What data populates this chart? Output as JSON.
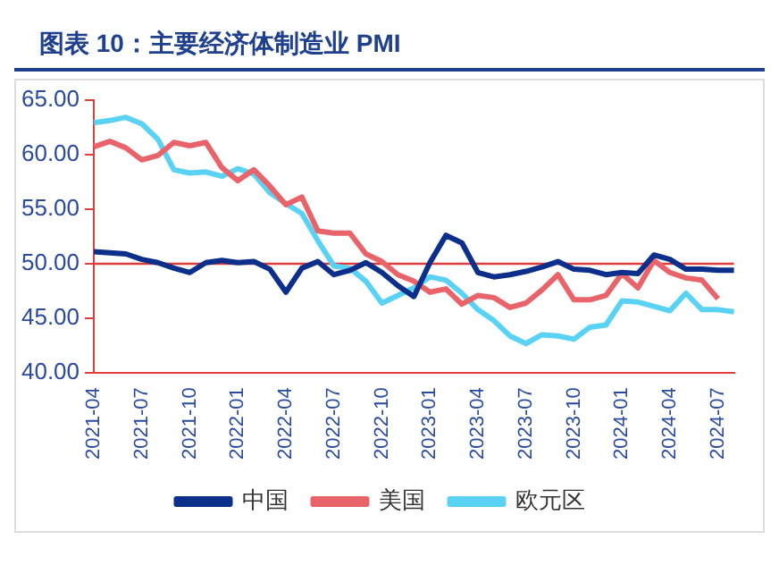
{
  "chart_data": {
    "type": "line",
    "title": "图表 10：主要经济体制造业 PMI",
    "categories": [
      "2021-04",
      null,
      null,
      "2021-07",
      null,
      null,
      "2021-10",
      null,
      null,
      "2022-01",
      null,
      null,
      "2022-04",
      null,
      null,
      "2022-07",
      null,
      null,
      "2022-10",
      null,
      null,
      "2023-01",
      null,
      null,
      "2023-04",
      null,
      null,
      "2023-07",
      null,
      null,
      "2023-10",
      null,
      null,
      "2024-01",
      null,
      null,
      "2024-04",
      null,
      null,
      "2024-07",
      null
    ],
    "series": [
      {
        "name": "中国",
        "color": "#0d2f8c",
        "values": [
          51.1,
          51.0,
          50.9,
          50.4,
          50.1,
          49.6,
          49.2,
          50.1,
          50.3,
          50.1,
          50.2,
          49.5,
          47.4,
          49.6,
          50.2,
          49.0,
          49.4,
          50.1,
          49.2,
          48.0,
          47.0,
          50.1,
          52.6,
          51.9,
          49.2,
          48.8,
          49.0,
          49.3,
          49.7,
          50.2,
          49.5,
          49.4,
          49.0,
          49.2,
          49.1,
          50.8,
          50.4,
          49.5,
          49.5,
          49.4,
          49.4
        ]
      },
      {
        "name": "美国",
        "color": "#e8646a",
        "values": [
          60.7,
          61.2,
          60.6,
          59.5,
          59.9,
          61.1,
          60.8,
          61.1,
          58.8,
          57.6,
          58.6,
          57.1,
          55.4,
          56.1,
          53.0,
          52.8,
          52.8,
          50.9,
          50.2,
          49.0,
          48.4,
          47.4,
          47.7,
          46.3,
          47.1,
          46.9,
          46.0,
          46.4,
          47.6,
          49.0,
          46.7,
          46.7,
          47.1,
          49.1,
          47.8,
          50.3,
          49.2,
          48.7,
          48.5,
          46.8,
          null
        ]
      },
      {
        "name": "欧元区",
        "color": "#5ad2f4",
        "values": [
          62.9,
          63.1,
          63.4,
          62.8,
          61.4,
          58.6,
          58.3,
          58.4,
          58.0,
          58.7,
          58.2,
          56.5,
          55.5,
          54.6,
          52.1,
          49.8,
          49.6,
          48.4,
          46.4,
          47.1,
          47.8,
          48.8,
          48.5,
          47.3,
          45.8,
          44.8,
          43.4,
          42.7,
          43.5,
          43.4,
          43.1,
          44.2,
          44.4,
          46.6,
          46.5,
          46.1,
          45.7,
          47.3,
          45.8,
          45.8,
          45.6
        ]
      }
    ],
    "ylim": [
      40,
      65
    ],
    "yticks": [
      {
        "value": 40,
        "label": "40.00"
      },
      {
        "value": 45,
        "label": "45.00"
      },
      {
        "value": 50,
        "label": "50.00"
      },
      {
        "value": 55,
        "label": "55.00"
      },
      {
        "value": 60,
        "label": "60.00"
      },
      {
        "value": 65,
        "label": "65.00"
      }
    ],
    "ref_lines": [
      {
        "axis": "y",
        "value": 50,
        "color": "#e03c3c"
      }
    ],
    "grid": false,
    "legend": "bottom",
    "marker": "none",
    "line_style": "solid"
  }
}
